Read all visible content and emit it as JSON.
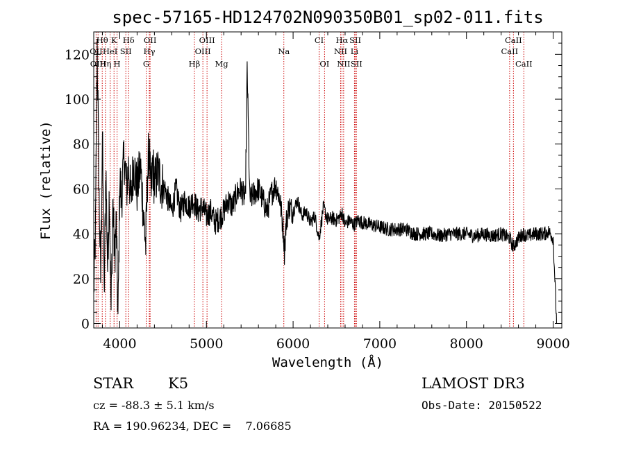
{
  "chart_data": {
    "type": "line",
    "title": "spec-57165-HD124702N090350B01_sp02-011.fits",
    "xlabel": "Wavelength (Å)",
    "ylabel": "Flux (relative)",
    "xlim": [
      3700,
      9100
    ],
    "ylim": [
      -2,
      130
    ],
    "xticks": [
      4000,
      5000,
      6000,
      7000,
      8000,
      9000
    ],
    "yticks": [
      0,
      20,
      40,
      60,
      80,
      100,
      120
    ],
    "xtick_labels": [
      "4000",
      "5000",
      "6000",
      "7000",
      "8000",
      "9000"
    ],
    "ytick_labels": [
      "0",
      "20",
      "40",
      "60",
      "80",
      "100",
      "120"
    ],
    "grid": false,
    "line_color": "#000000",
    "marker_color": "#cc0000",
    "series": [
      {
        "x": [
          3700,
          3720,
          3740,
          3760,
          3780,
          3800,
          3820,
          3840,
          3860,
          3880,
          3900,
          3920,
          3940,
          3960,
          3980,
          4000,
          4020,
          4050,
          4080,
          4100,
          4130,
          4160,
          4200,
          4240,
          4280,
          4300,
          4320,
          4340,
          4360,
          4380,
          4400,
          4440,
          4480,
          4520,
          4560,
          4600,
          4650,
          4700,
          4750,
          4800,
          4850,
          4900,
          4950,
          5000,
          5050,
          5100,
          5150,
          5200,
          5250,
          5300,
          5350,
          5400,
          5450,
          5470,
          5500,
          5550,
          5600,
          5650,
          5700,
          5750,
          5800,
          5850,
          5890,
          5900,
          5920,
          5950,
          6000,
          6050,
          6100,
          6150,
          6200,
          6250,
          6300,
          6350,
          6400,
          6450,
          6500,
          6550,
          6563,
          6600,
          6650,
          6700,
          6750,
          6800,
          6900,
          7000,
          7100,
          7200,
          7300,
          7400,
          7500,
          7600,
          7700,
          7800,
          7900,
          8000,
          8100,
          8200,
          8300,
          8400,
          8500,
          8540,
          8600,
          8650,
          8700,
          8800,
          8900,
          8950,
          9000,
          9020,
          9040
        ],
        "y": [
          15,
          40,
          125,
          60,
          20,
          85,
          10,
          70,
          25,
          60,
          5,
          55,
          30,
          45,
          0,
          65,
          55,
          75,
          60,
          70,
          55,
          72,
          60,
          70,
          45,
          35,
          65,
          80,
          55,
          72,
          62,
          68,
          62,
          60,
          55,
          50,
          60,
          50,
          55,
          52,
          55,
          50,
          52,
          48,
          50,
          45,
          47,
          50,
          55,
          52,
          58,
          60,
          55,
          115,
          55,
          58,
          60,
          55,
          50,
          58,
          62,
          55,
          40,
          32,
          45,
          52,
          50,
          55,
          48,
          50,
          45,
          48,
          38,
          52,
          46,
          47,
          46,
          48,
          50,
          44,
          46,
          44,
          46,
          45,
          44,
          43,
          42,
          42,
          42,
          40,
          40,
          40,
          39,
          40,
          40,
          40,
          39,
          40,
          39,
          40,
          38,
          34,
          38,
          40,
          39,
          40,
          40,
          41,
          38,
          20,
          0
        ]
      }
    ],
    "line_markers": [
      {
        "label": "Hθ",
        "x": 3798,
        "row": 1
      },
      {
        "label": "K",
        "x": 3934,
        "row": 1
      },
      {
        "label": "Hδ",
        "x": 4102,
        "row": 1
      },
      {
        "label": "OII",
        "x": 4350,
        "row": 1
      },
      {
        "label": "OIII",
        "x": 5007,
        "row": 1
      },
      {
        "label": "CI",
        "x": 6300,
        "row": 1
      },
      {
        "label": "Hα",
        "x": 6563,
        "row": 1
      },
      {
        "label": "SII",
        "x": 6717,
        "row": 1
      },
      {
        "label": "CaII",
        "x": 8542,
        "row": 1
      },
      {
        "label": "OII",
        "x": 3727,
        "row": 2
      },
      {
        "label": "HeI",
        "x": 3889,
        "row": 2
      },
      {
        "label": "SII",
        "x": 4070,
        "row": 2
      },
      {
        "label": "Hγ",
        "x": 4341,
        "row": 2
      },
      {
        "label": "OIII",
        "x": 4959,
        "row": 2
      },
      {
        "label": "Na",
        "x": 5893,
        "row": 2
      },
      {
        "label": "NII",
        "x": 6548,
        "row": 2
      },
      {
        "label": "Li",
        "x": 6708,
        "row": 2
      },
      {
        "label": "CaII",
        "x": 8498,
        "row": 2
      },
      {
        "label": "OIII",
        "x": 3750,
        "row": 3
      },
      {
        "label": "Hη",
        "x": 3835,
        "row": 3
      },
      {
        "label": "H",
        "x": 3969,
        "row": 3
      },
      {
        "label": "G",
        "x": 4305,
        "row": 3
      },
      {
        "label": "Hβ",
        "x": 4861,
        "row": 3
      },
      {
        "label": "Mg",
        "x": 5175,
        "row": 3
      },
      {
        "label": "OI",
        "x": 6363,
        "row": 3
      },
      {
        "label": "NII",
        "x": 6583,
        "row": 3
      },
      {
        "label": "SII",
        "x": 6731,
        "row": 3
      },
      {
        "label": "CaII",
        "x": 8662,
        "row": 3
      }
    ]
  },
  "info": {
    "class": "STAR",
    "subclass": "K5",
    "survey": "LAMOST DR3",
    "cz": "cz = -88.3 ± 5.1 km/s",
    "obs_date": "Obs-Date: 20150522",
    "coords": "RA = 190.96234, DEC =    7.06685"
  }
}
